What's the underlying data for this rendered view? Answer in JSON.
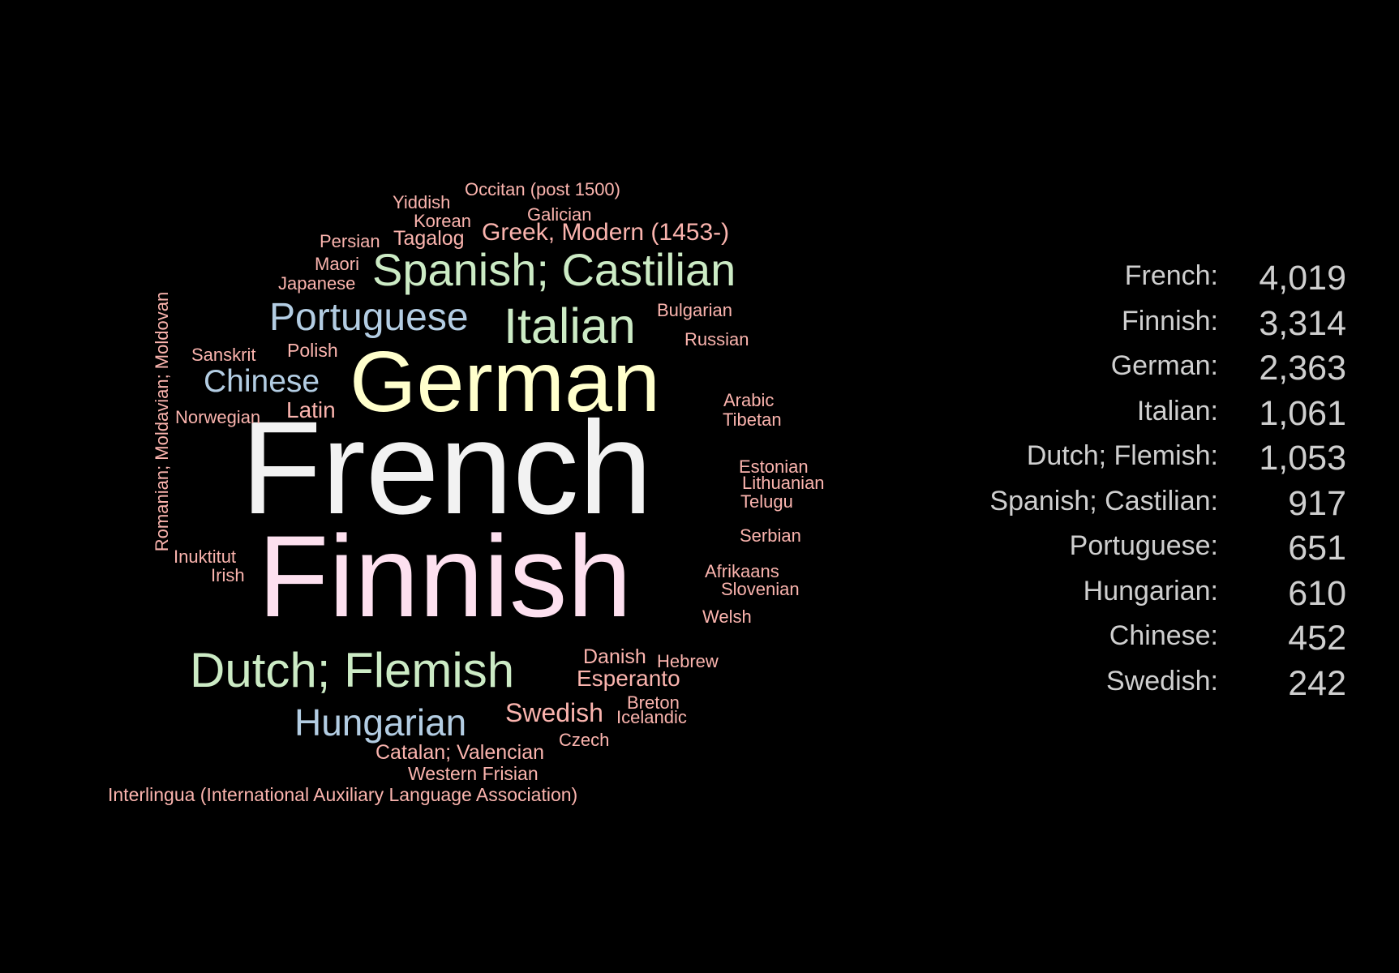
{
  "chart_data": {
    "type": "wordcloud",
    "palette": [
      "#f2f2f2",
      "#fde0ef",
      "#ffffcc",
      "#ccebc5",
      "#b3cde3",
      "#fbb4ae"
    ],
    "words": [
      {
        "text": "French",
        "color": "#f2f2f2"
      },
      {
        "text": "Finnish",
        "color": "#fde0ef"
      },
      {
        "text": "German",
        "color": "#ffffcc"
      },
      {
        "text": "Italian",
        "color": "#ccebc5"
      },
      {
        "text": "Dutch; Flemish",
        "color": "#ccebc5"
      },
      {
        "text": "Spanish; Castilian",
        "color": "#ccebc5"
      },
      {
        "text": "Portuguese",
        "color": "#b3cde3"
      },
      {
        "text": "Hungarian",
        "color": "#b3cde3"
      },
      {
        "text": "Chinese",
        "color": "#b3cde3"
      },
      {
        "text": "Swedish",
        "color": "#fbb4ae"
      },
      {
        "text": "Greek, Modern (1453-)",
        "color": "#fbb4ae"
      },
      {
        "text": "Esperanto",
        "color": "#fbb4ae"
      },
      {
        "text": "Latin",
        "color": "#fbb4ae"
      },
      {
        "text": "Catalan; Valencian",
        "color": "#fbb4ae"
      },
      {
        "text": "Danish",
        "color": "#fbb4ae"
      },
      {
        "text": "Tagalog",
        "color": "#fbb4ae"
      },
      {
        "text": "Polish",
        "color": "#fbb4ae"
      },
      {
        "text": "Western Frisian",
        "color": "#fbb4ae"
      },
      {
        "text": "Interlingua (International Auxiliary Language Association)",
        "color": "#fbb4ae"
      },
      {
        "text": "Romanian; Moldavian; Moldovan",
        "color": "#fbb4ae"
      },
      {
        "text": "Occitan (post 1500)",
        "color": "#fbb4ae"
      },
      {
        "text": "Yiddish",
        "color": "#fbb4ae"
      },
      {
        "text": "Korean",
        "color": "#fbb4ae"
      },
      {
        "text": "Galician",
        "color": "#fbb4ae"
      },
      {
        "text": "Persian",
        "color": "#fbb4ae"
      },
      {
        "text": "Maori",
        "color": "#fbb4ae"
      },
      {
        "text": "Japanese",
        "color": "#fbb4ae"
      },
      {
        "text": "Bulgarian",
        "color": "#fbb4ae"
      },
      {
        "text": "Russian",
        "color": "#fbb4ae"
      },
      {
        "text": "Sanskrit",
        "color": "#fbb4ae"
      },
      {
        "text": "Norwegian",
        "color": "#fbb4ae"
      },
      {
        "text": "Arabic",
        "color": "#fbb4ae"
      },
      {
        "text": "Tibetan",
        "color": "#fbb4ae"
      },
      {
        "text": "Estonian",
        "color": "#fbb4ae"
      },
      {
        "text": "Lithuanian",
        "color": "#fbb4ae"
      },
      {
        "text": "Telugu",
        "color": "#fbb4ae"
      },
      {
        "text": "Serbian",
        "color": "#fbb4ae"
      },
      {
        "text": "Inuktitut",
        "color": "#fbb4ae"
      },
      {
        "text": "Irish",
        "color": "#fbb4ae"
      },
      {
        "text": "Afrikaans",
        "color": "#fbb4ae"
      },
      {
        "text": "Slovenian",
        "color": "#fbb4ae"
      },
      {
        "text": "Welsh",
        "color": "#fbb4ae"
      },
      {
        "text": "Hebrew",
        "color": "#fbb4ae"
      },
      {
        "text": "Breton",
        "color": "#fbb4ae"
      },
      {
        "text": "Icelandic",
        "color": "#fbb4ae"
      },
      {
        "text": "Czech",
        "color": "#fbb4ae"
      }
    ],
    "ranking": [
      {
        "label": "French:",
        "value": "4,019"
      },
      {
        "label": "Finnish:",
        "value": "3,314"
      },
      {
        "label": "German:",
        "value": "2,363"
      },
      {
        "label": "Italian:",
        "value": "1,061"
      },
      {
        "label": "Dutch; Flemish:",
        "value": "1,053"
      },
      {
        "label": "Spanish; Castilian:",
        "value": "917"
      },
      {
        "label": "Portuguese:",
        "value": "651"
      },
      {
        "label": "Hungarian:",
        "value": "610"
      },
      {
        "label": "Chinese:",
        "value": "452"
      },
      {
        "label": "Swedish:",
        "value": "242"
      }
    ]
  }
}
